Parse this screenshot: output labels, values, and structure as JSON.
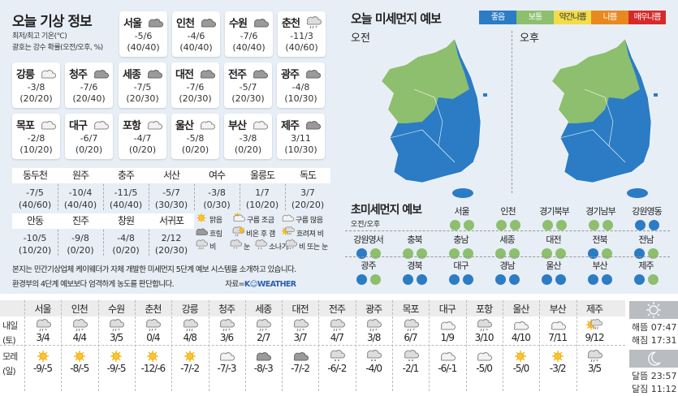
{
  "title": "오늘 기상 정보",
  "subtitle1": "최저/최고 기온(℃)",
  "subtitle2": "괄호는 강수 확률(오전/오후, %)",
  "cards": [
    {
      "name": "서울",
      "temp": "-5/6",
      "prob": "(40/40)",
      "icon": "cloud-dark"
    },
    {
      "name": "인천",
      "temp": "-4/6",
      "prob": "(40/40)",
      "icon": "cloud-dark"
    },
    {
      "name": "수원",
      "temp": "-7/6",
      "prob": "(40/40)",
      "icon": "cloud-dark"
    },
    {
      "name": "춘천",
      "temp": "-11/3",
      "prob": "(40/60)",
      "icon": "rain-snow"
    },
    {
      "name": "강릉",
      "temp": "-3/8",
      "prob": "(20/20)",
      "icon": "cloud-light"
    },
    {
      "name": "청주",
      "temp": "-7/6",
      "prob": "(20/40)",
      "icon": "cloud-dark"
    },
    {
      "name": "세종",
      "temp": "-7/5",
      "prob": "(20/30)",
      "icon": "cloud-dark"
    },
    {
      "name": "대전",
      "temp": "-7/6",
      "prob": "(20/30)",
      "icon": "cloud-dark"
    },
    {
      "name": "전주",
      "temp": "-5/7",
      "prob": "(20/30)",
      "icon": "cloud-dark"
    },
    {
      "name": "광주",
      "temp": "-4/8",
      "prob": "(10/30)",
      "icon": "cloud-dark"
    },
    {
      "name": "목포",
      "temp": "-2/8",
      "prob": "(10/20)",
      "icon": "cloud-light"
    },
    {
      "name": "대구",
      "temp": "-6/7",
      "prob": "(0/20)",
      "icon": "cloud-light"
    },
    {
      "name": "포항",
      "temp": "-4/7",
      "prob": "(0/20)",
      "icon": "cloud-light"
    },
    {
      "name": "울산",
      "temp": "-5/8",
      "prob": "(0/20)",
      "icon": "cloud-light"
    },
    {
      "name": "부산",
      "temp": "-3/8",
      "prob": "(0/20)",
      "icon": "cloud-light"
    },
    {
      "name": "제주",
      "temp": "3/11",
      "prob": "(10/30)",
      "icon": "cloud-dark"
    }
  ],
  "secondary": [
    {
      "name": "동두천",
      "temp": "-7/5",
      "prob": "(40/60)"
    },
    {
      "name": "원주",
      "temp": "-10/4",
      "prob": "(40/40)"
    },
    {
      "name": "충주",
      "temp": "-11/5",
      "prob": "(40/40)"
    },
    {
      "name": "서산",
      "temp": "-5/7",
      "prob": "(30/30)"
    },
    {
      "name": "여수",
      "temp": "-3/8",
      "prob": "(0/30)"
    },
    {
      "name": "울릉도",
      "temp": "1/7",
      "prob": "(10/20)"
    },
    {
      "name": "독도",
      "temp": "3/7",
      "prob": "(20/20)"
    },
    {
      "name": "안동",
      "temp": "-10/5",
      "prob": "(10/20)"
    },
    {
      "name": "진주",
      "temp": "-9/8",
      "prob": "(0/20)"
    },
    {
      "name": "창원",
      "temp": "-4/8",
      "prob": "(0/20)"
    },
    {
      "name": "서귀포",
      "temp": "2/12",
      "prob": "(20/30)"
    }
  ],
  "legend": [
    {
      "label": "맑음",
      "icon": "sun"
    },
    {
      "label": "구름 조금",
      "icon": "sun-cloud"
    },
    {
      "label": "구름 많음",
      "icon": "cloud-light"
    },
    {
      "label": "흐림",
      "icon": "cloud-dark"
    },
    {
      "label": "비온 후 갬",
      "icon": "rain-sun"
    },
    {
      "label": "흐려져 비",
      "icon": "sun-rain"
    },
    {
      "label": "비",
      "icon": "rain"
    },
    {
      "label": "눈",
      "icon": "snow"
    },
    {
      "label": "소나기",
      "icon": "shower"
    },
    {
      "label": "비 또는 눈",
      "icon": "rain-snow"
    }
  ],
  "footer": {
    "line1": "본지는 민간기상업체 케이웨더가 자체 개발한 미세먼지 5단계 예보 시스템을 소개하고 있습니다.",
    "line2": "환경부의 4단계 예보보다 엄격하게 농도를 판단합니다.",
    "source": "자료=",
    "brand": "K☺WEATHER"
  },
  "dust": {
    "title": "오늘 미세먼지 예보",
    "am": "오전",
    "pm": "오후",
    "levels": [
      {
        "label": "좋음",
        "color": "#2b7cc4"
      },
      {
        "label": "보통",
        "color": "#8dbf6e"
      },
      {
        "label": "약간나쁨",
        "color": "#f2dc4a"
      },
      {
        "label": "나쁨",
        "color": "#e8891f"
      },
      {
        "label": "매우나쁨",
        "color": "#d62a2a"
      }
    ]
  },
  "fine_dust": {
    "title": "초미세먼지 예보",
    "subtitle": "오전/오후",
    "regions": [
      {
        "name": "서울",
        "am": "보통",
        "pm": "보통"
      },
      {
        "name": "인천",
        "am": "보통",
        "pm": "보통"
      },
      {
        "name": "경기북부",
        "am": "보통",
        "pm": "보통"
      },
      {
        "name": "경기남부",
        "am": "보통",
        "pm": "보통"
      },
      {
        "name": "강원영동",
        "am": "좋음",
        "pm": "좋음"
      },
      {
        "name": "강원영서",
        "am": "좋음",
        "pm": "보통"
      },
      {
        "name": "충북",
        "am": "보통",
        "pm": "보통"
      },
      {
        "name": "충남",
        "am": "보통",
        "pm": "보통"
      },
      {
        "name": "세종",
        "am": "보통",
        "pm": "보통"
      },
      {
        "name": "대전",
        "am": "보통",
        "pm": "보통"
      },
      {
        "name": "전북",
        "am": "좋음",
        "pm": "보통"
      },
      {
        "name": "전남",
        "am": "좋음",
        "pm": "보통"
      },
      {
        "name": "광주",
        "am": "좋음",
        "pm": "보통"
      },
      {
        "name": "경북",
        "am": "좋음",
        "pm": "좋음"
      },
      {
        "name": "대구",
        "am": "좋음",
        "pm": "좋음"
      },
      {
        "name": "경남",
        "am": "좋음",
        "pm": "좋음"
      },
      {
        "name": "울산",
        "am": "좋음",
        "pm": "좋음"
      },
      {
        "name": "부산",
        "am": "좋음",
        "pm": "좋음"
      },
      {
        "name": "제주",
        "am": "좋음",
        "pm": "보통"
      }
    ]
  },
  "forecast": {
    "row1_label": [
      "내일",
      "(토)"
    ],
    "row2_label": [
      "모레",
      "(일)"
    ],
    "cities": [
      "서울",
      "인천",
      "수원",
      "춘천",
      "강릉",
      "청주",
      "세종",
      "대전",
      "전주",
      "광주",
      "목포",
      "대구",
      "포항",
      "울산",
      "부산",
      "제주"
    ],
    "tomorrow": [
      {
        "t": "3/4",
        "i": "rain-snow"
      },
      {
        "t": "4/4",
        "i": "rain-snow"
      },
      {
        "t": "3/5",
        "i": "rain-snow"
      },
      {
        "t": "0/4",
        "i": "rain-snow"
      },
      {
        "t": "4/8",
        "i": "rain"
      },
      {
        "t": "3/6",
        "i": "rain-snow"
      },
      {
        "t": "2/7",
        "i": "rain-snow"
      },
      {
        "t": "3/7",
        "i": "rain-snow"
      },
      {
        "t": "4/7",
        "i": "rain-snow"
      },
      {
        "t": "3/8",
        "i": "rain-snow"
      },
      {
        "t": "6/7",
        "i": "rain-snow"
      },
      {
        "t": "1/9",
        "i": "cloud-light"
      },
      {
        "t": "3/10",
        "i": "rain-snow"
      },
      {
        "t": "4/10",
        "i": "cloud-light"
      },
      {
        "t": "7/11",
        "i": "cloud-light"
      },
      {
        "t": "9/12",
        "i": "sun-rain"
      }
    ],
    "dayafter": [
      {
        "t": "-9/-5",
        "i": "sun"
      },
      {
        "t": "-8/-5",
        "i": "sun"
      },
      {
        "t": "-9/-5",
        "i": "sun"
      },
      {
        "t": "-12/-6",
        "i": "sun"
      },
      {
        "t": "-7/-2",
        "i": "sun"
      },
      {
        "t": "-7/-3",
        "i": "cloud-light"
      },
      {
        "t": "-8/-3",
        "i": "cloud-dark"
      },
      {
        "t": "-7/-2",
        "i": "cloud-dark"
      },
      {
        "t": "-6/-2",
        "i": "snow"
      },
      {
        "t": "-4/0",
        "i": "snow"
      },
      {
        "t": "-2/1",
        "i": "snow"
      },
      {
        "t": "-6/-1",
        "i": "cloud-light"
      },
      {
        "t": "-5/0",
        "i": "cloud-light"
      },
      {
        "t": "-5/0",
        "i": "sun"
      },
      {
        "t": "-3/2",
        "i": "sun"
      },
      {
        "t": "3/5",
        "i": "rain-snow"
      }
    ]
  },
  "sun": {
    "rise": "해뜸 07:47",
    "set": "해짐 17:31"
  },
  "moon": {
    "rise": "달뜸 23:57",
    "set": "달짐 11:12"
  }
}
